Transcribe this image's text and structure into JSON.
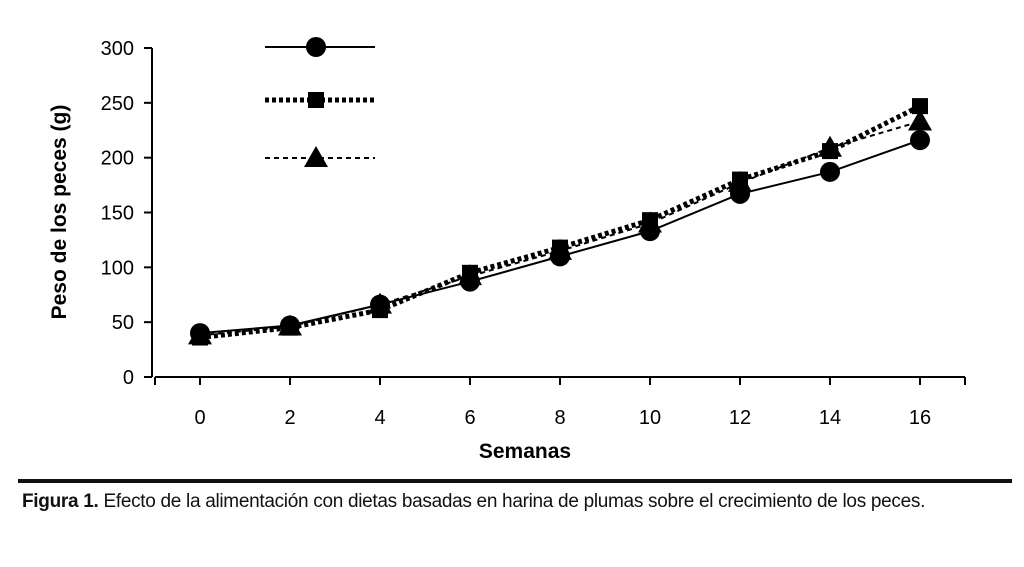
{
  "chart_data": {
    "type": "line",
    "xlabel": "Semanas",
    "ylabel": "Peso de los peces (g)",
    "x": [
      0,
      2,
      4,
      6,
      8,
      10,
      12,
      14,
      16
    ],
    "xlim": [
      -1,
      17
    ],
    "xticks": [
      0,
      2,
      4,
      6,
      8,
      10,
      12,
      14,
      16
    ],
    "ylim": [
      0,
      300
    ],
    "yticks": [
      0,
      50,
      100,
      150,
      200,
      250,
      300
    ],
    "grid": false,
    "series": [
      {
        "color": "#000000",
        "marker": "circle",
        "line": "solid",
        "values": [
          40,
          47,
          66,
          87,
          110,
          133,
          167,
          187,
          216
        ]
      },
      {
        "color": "#000000",
        "marker": "square",
        "line": "dotted",
        "values": [
          36,
          45,
          61,
          95,
          118,
          143,
          180,
          206,
          247
        ]
      },
      {
        "color": "#000000",
        "marker": "triangle",
        "line": "dashed",
        "values": [
          38,
          46,
          66,
          92,
          115,
          140,
          177,
          209,
          233
        ]
      }
    ]
  },
  "caption": {
    "label": "Figura 1.",
    "text": "Efecto de la alimentación con dietas basadas en harina de plumas sobre el crecimiento de los peces."
  }
}
